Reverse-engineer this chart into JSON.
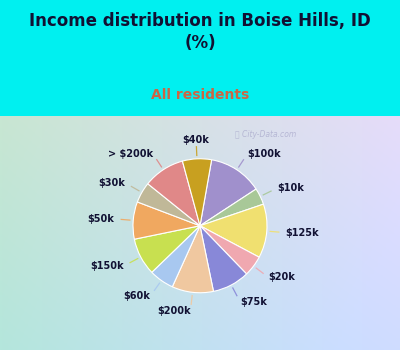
{
  "title": "Income distribution in Boise Hills, ID\n(%)",
  "subtitle": "All residents",
  "bg_cyan": "#00f0f0",
  "bg_chart_color1": "#d0e8d8",
  "bg_chart_color2": "#c8e8f0",
  "title_color": "#111133",
  "subtitle_color": "#cc6644",
  "labels": [
    "$100k",
    "$10k",
    "$125k",
    "$20k",
    "$75k",
    "$200k",
    "$60k",
    "$150k",
    "$50k",
    "$30k",
    "> $200k",
    "$40k"
  ],
  "values": [
    13,
    4,
    13,
    5,
    9,
    10,
    6,
    9,
    9,
    5,
    10,
    7
  ],
  "colors": [
    "#a090cc",
    "#a8c898",
    "#f0e070",
    "#f0a8b0",
    "#8888d8",
    "#f0c8a0",
    "#a8c8f0",
    "#c8e050",
    "#f0a860",
    "#c0b898",
    "#e08888",
    "#c8a020"
  ],
  "wedge_edge_color": "white",
  "wedge_linewidth": 0.8,
  "title_fontsize": 12,
  "subtitle_fontsize": 10,
  "label_fontsize": 7
}
